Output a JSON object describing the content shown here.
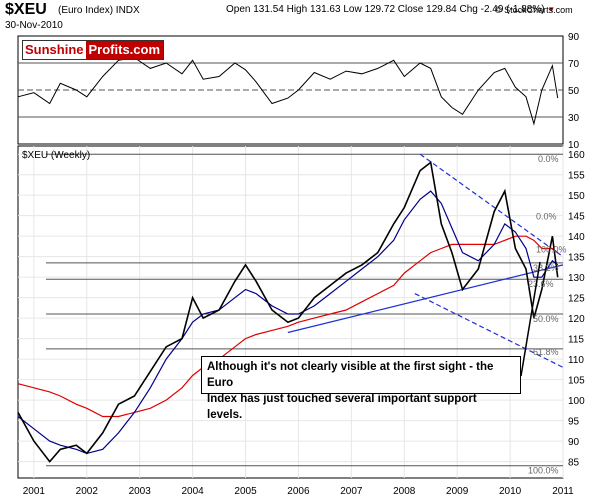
{
  "header": {
    "symbol": "$XEU",
    "name": "(Euro Index) INDX",
    "date": "30-Nov-2010",
    "ohlc": "Open 131.54  High 131.63  Low 129.72  Close 129.84  Chg -2.49 (-1.88%)",
    "change_arrow": "▼",
    "site": "© StockCharts.com"
  },
  "logo": {
    "part1": "Sunshine",
    "part2": "Profits.com"
  },
  "rsi_panel": {
    "ticks": [
      "90",
      "70",
      "50",
      "30",
      "10"
    ],
    "levels": [
      70,
      50,
      30
    ],
    "ylim": [
      10,
      90
    ]
  },
  "price_panel": {
    "label": "$XEU (Weekly)",
    "ticks": [
      "160",
      "155",
      "150",
      "145",
      "140",
      "135",
      "130",
      "125",
      "120",
      "115",
      "110",
      "105",
      "100",
      "95",
      "90",
      "85"
    ],
    "ylim": [
      81,
      162
    ],
    "x_ticks": [
      "2001",
      "2002",
      "2003",
      "2004",
      "2005",
      "2006",
      "2007",
      "2008",
      "2009",
      "2010",
      "2011"
    ],
    "fib_labels": [
      "0.0%",
      "100.0%",
      "50.0%",
      "38.2%",
      "23.6%",
      "61.8%",
      "0.0%",
      "100.0%"
    ],
    "annotation_line1": "Although it's not clearly visible at the first sight - the Euro",
    "annotation_line2": "Index has just touched several important support levels."
  },
  "chart_data": {
    "type": "line",
    "title": "$XEU (Euro Index) INDX",
    "x": [
      2000.7,
      2001.0,
      2001.3,
      2001.5,
      2001.8,
      2002.0,
      2002.3,
      2002.6,
      2002.9,
      2003.2,
      2003.5,
      2003.8,
      2004.0,
      2004.2,
      2004.5,
      2004.8,
      2005.0,
      2005.2,
      2005.5,
      2005.8,
      2006.0,
      2006.3,
      2006.6,
      2006.9,
      2007.2,
      2007.5,
      2007.8,
      2008.0,
      2008.3,
      2008.5,
      2008.7,
      2008.9,
      2009.1,
      2009.4,
      2009.7,
      2009.9,
      2010.1,
      2010.3,
      2010.45,
      2010.6,
      2010.8,
      2010.9
    ],
    "series": [
      {
        "values": [
          97,
          90,
          85,
          88,
          89,
          87,
          92,
          99,
          101,
          107,
          113,
          115,
          125,
          120,
          122,
          129,
          133,
          129,
          122,
          119,
          120,
          125,
          128,
          131,
          133,
          136,
          143,
          147,
          156,
          158,
          143,
          136,
          127,
          132,
          146,
          151,
          137,
          132,
          120,
          127,
          140,
          130
        ]
      },
      {
        "values": [
          96,
          93,
          90,
          89,
          88,
          87,
          88,
          92,
          97,
          103,
          110,
          115,
          119,
          121,
          122,
          125,
          127,
          126,
          123,
          121,
          121,
          123,
          126,
          129,
          132,
          135,
          139,
          144,
          149,
          151,
          148,
          142,
          136,
          134,
          138,
          143,
          141,
          137,
          130,
          130,
          134,
          133
        ]
      },
      {
        "values": [
          104,
          103,
          102,
          101,
          99,
          98,
          96,
          96,
          97,
          98,
          100,
          103,
          106,
          108,
          110,
          113,
          115,
          116,
          117,
          118,
          119,
          120,
          121,
          122,
          124,
          126,
          128,
          131,
          134,
          136,
          137,
          138,
          138,
          138,
          138,
          139,
          140,
          140,
          139,
          137,
          137,
          136
        ]
      }
    ],
    "rsi": [
      45,
      48,
      40,
      55,
      50,
      45,
      60,
      72,
      74,
      66,
      70,
      62,
      72,
      58,
      60,
      70,
      65,
      56,
      40,
      44,
      50,
      63,
      58,
      64,
      62,
      66,
      72,
      60,
      70,
      66,
      45,
      37,
      32,
      50,
      63,
      66,
      52,
      45,
      25,
      50,
      68,
      44
    ],
    "xlabel": "",
    "ylabel": "",
    "ylim": [
      81,
      162
    ],
    "grid": true
  }
}
